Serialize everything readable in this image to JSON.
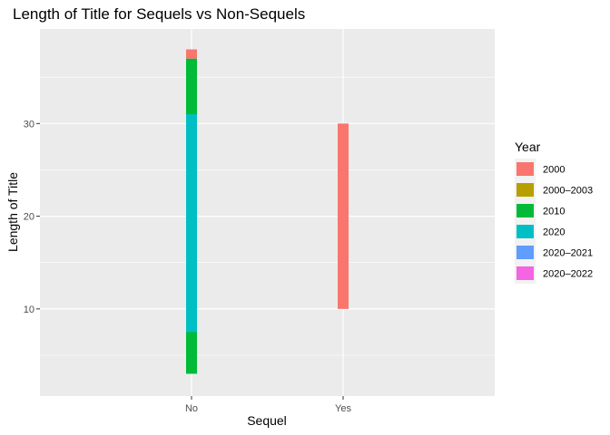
{
  "chart_data": {
    "type": "bar",
    "title": "Length of Title for Sequels vs Non-Sequels",
    "xlabel": "Sequel",
    "ylabel": "Length of Title",
    "categories": [
      "No",
      "Yes"
    ],
    "yticks": [
      10,
      20,
      30
    ],
    "ylim": [
      0.6,
      40.2
    ],
    "grid": true,
    "legend": {
      "title": "Year",
      "position": "right",
      "items": [
        {
          "label": "2000",
          "color": "#F8766D"
        },
        {
          "label": "2000–2003",
          "color": "#B79F00"
        },
        {
          "label": "2010",
          "color": "#00BA38"
        },
        {
          "label": "2020",
          "color": "#00BFC4"
        },
        {
          "label": "2020–2021",
          "color": "#619CFF"
        },
        {
          "label": "2020–2022",
          "color": "#F564E3"
        }
      ]
    },
    "series": [
      {
        "name": "2000",
        "color": "#F8766D",
        "ranges": [
          {
            "category": "No",
            "min": 37,
            "max": 38
          },
          {
            "category": "Yes",
            "min": 10,
            "max": 30
          }
        ]
      },
      {
        "name": "2010",
        "color": "#00BA38",
        "ranges": [
          {
            "category": "No",
            "min": 3,
            "max": 37
          }
        ]
      },
      {
        "name": "2020",
        "color": "#00BFC4",
        "ranges": [
          {
            "category": "No",
            "min": 7.5,
            "max": 31
          }
        ]
      }
    ]
  }
}
